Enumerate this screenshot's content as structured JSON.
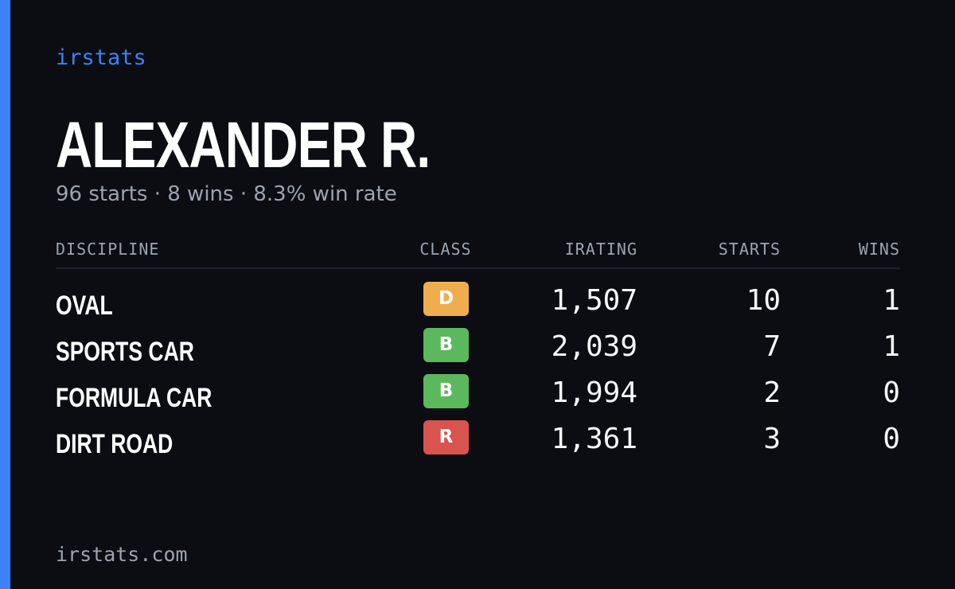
{
  "brand": {
    "label": "irstats",
    "accent_color": "#3b82f6"
  },
  "driver": {
    "name": "ALEXANDER R.",
    "summary": "96 starts · 8 wins · 8.3% win rate"
  },
  "table": {
    "headers": {
      "discipline": "DISCIPLINE",
      "class": "CLASS",
      "irating": "IRATING",
      "starts": "STARTS",
      "wins": "WINS"
    },
    "rows": [
      {
        "discipline": "OVAL",
        "class": "D",
        "class_color": "#f0ad4e",
        "irating": "1,507",
        "starts": "10",
        "wins": "1"
      },
      {
        "discipline": "SPORTS CAR",
        "class": "B",
        "class_color": "#5cb85c",
        "irating": "2,039",
        "starts": "7",
        "wins": "1"
      },
      {
        "discipline": "FORMULA CAR",
        "class": "B",
        "class_color": "#5cb85c",
        "irating": "1,994",
        "starts": "2",
        "wins": "0"
      },
      {
        "discipline": "DIRT ROAD",
        "class": "R",
        "class_color": "#d9534f",
        "irating": "1,361",
        "starts": "3",
        "wins": "0"
      }
    ]
  },
  "footer": {
    "url": "irstats.com"
  }
}
